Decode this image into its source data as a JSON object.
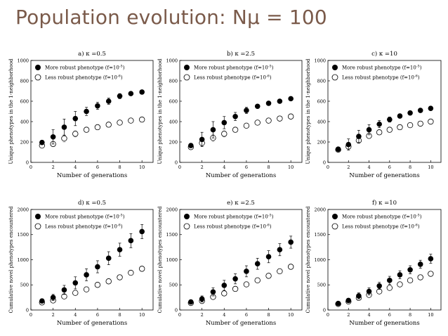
{
  "slide": {
    "title": "Population evolution: Nμ = 100"
  },
  "legend": {
    "more_robust": "More robust phenotype (f=10",
    "more_robust_exp": "-5",
    "less_robust": "Less robust phenotype (f=10",
    "less_robust_exp": "-6",
    "close": ")"
  },
  "chart_data": [
    {
      "id": "a",
      "type": "scatter",
      "title": "a) κ =0.5",
      "xlabel": "Number of generations",
      "ylabel": "Unique phenotypes in the 1-neighborhood",
      "xlim": [
        0,
        11
      ],
      "ylim": [
        0,
        1000
      ],
      "xticks": [
        0,
        2,
        4,
        6,
        8,
        10
      ],
      "yticks": [
        0,
        200,
        400,
        600,
        800,
        1000
      ],
      "x": [
        1,
        2,
        3,
        4,
        5,
        6,
        7,
        8,
        9,
        10
      ],
      "series": [
        {
          "name": "More robust phenotype (f=10^-5)",
          "marker": "filled",
          "values": [
            195,
            250,
            345,
            430,
            500,
            555,
            600,
            650,
            675,
            690
          ],
          "err": [
            20,
            70,
            80,
            70,
            40,
            35,
            30,
            25,
            15,
            10
          ]
        },
        {
          "name": "Less robust phenotype (f=10^-6)",
          "marker": "open",
          "values": [
            165,
            180,
            235,
            280,
            320,
            345,
            370,
            390,
            410,
            420
          ],
          "err": [
            15,
            25,
            35,
            30,
            20,
            15,
            12,
            10,
            10,
            10
          ]
        }
      ]
    },
    {
      "id": "b",
      "type": "scatter",
      "title": "b) κ =2.5",
      "xlabel": "Number of generations",
      "ylabel": "Unique phenotypes in the 1-neighborhood",
      "xlim": [
        0,
        11
      ],
      "ylim": [
        0,
        1000
      ],
      "xticks": [
        0,
        2,
        4,
        6,
        8,
        10
      ],
      "yticks": [
        0,
        200,
        400,
        600,
        800,
        1000
      ],
      "x": [
        1,
        2,
        3,
        4,
        5,
        6,
        7,
        8,
        9,
        10
      ],
      "series": [
        {
          "name": "More robust phenotype (f=10^-5)",
          "marker": "filled",
          "values": [
            165,
            225,
            320,
            390,
            450,
            510,
            550,
            580,
            600,
            625
          ],
          "err": [
            20,
            70,
            80,
            60,
            40,
            30,
            20,
            15,
            15,
            10
          ]
        },
        {
          "name": "Less robust phenotype (f=10^-6)",
          "marker": "open",
          "values": [
            150,
            190,
            240,
            280,
            320,
            360,
            390,
            410,
            430,
            450
          ],
          "err": [
            15,
            30,
            35,
            30,
            20,
            15,
            12,
            10,
            10,
            10
          ]
        }
      ]
    },
    {
      "id": "c",
      "type": "scatter",
      "title": "c) κ =10",
      "xlabel": "Number of generations",
      "ylabel": "Unique phenotypes in the 1-neighborhood",
      "xlim": [
        0,
        11
      ],
      "ylim": [
        0,
        1000
      ],
      "xticks": [
        0,
        2,
        4,
        6,
        8,
        10
      ],
      "yticks": [
        0,
        200,
        400,
        600,
        800,
        1000
      ],
      "x": [
        1,
        2,
        3,
        4,
        5,
        6,
        7,
        8,
        9,
        10
      ],
      "series": [
        {
          "name": "More robust phenotype (f=10^-5)",
          "marker": "filled",
          "values": [
            130,
            175,
            255,
            320,
            375,
            420,
            455,
            485,
            510,
            530
          ],
          "err": [
            15,
            55,
            60,
            50,
            35,
            25,
            20,
            15,
            15,
            10
          ]
        },
        {
          "name": "Less robust phenotype (f=10^-6)",
          "marker": "open",
          "values": [
            125,
            155,
            215,
            260,
            295,
            320,
            345,
            365,
            380,
            400
          ],
          "err": [
            10,
            25,
            30,
            25,
            20,
            15,
            12,
            10,
            10,
            10
          ]
        }
      ]
    },
    {
      "id": "d",
      "type": "scatter",
      "title": "d) κ =0.5",
      "xlabel": "Number of generations",
      "ylabel": "Cumulative novel phenotypes encountered",
      "xlim": [
        0,
        11
      ],
      "ylim": [
        0,
        2000
      ],
      "xticks": [
        0,
        2,
        4,
        6,
        8,
        10
      ],
      "yticks": [
        0,
        500,
        1000,
        1500,
        2000
      ],
      "x": [
        1,
        2,
        3,
        4,
        5,
        6,
        7,
        8,
        9,
        10
      ],
      "series": [
        {
          "name": "More robust phenotype (f=10^-5)",
          "marker": "filled",
          "values": [
            180,
            250,
            400,
            540,
            700,
            860,
            1030,
            1200,
            1380,
            1560
          ],
          "err": [
            40,
            60,
            90,
            120,
            120,
            120,
            130,
            130,
            140,
            140
          ]
        },
        {
          "name": "Less robust phenotype (f=10^-6)",
          "marker": "open",
          "values": [
            150,
            190,
            270,
            340,
            410,
            500,
            570,
            650,
            740,
            820
          ],
          "err": [
            20,
            30,
            40,
            40,
            40,
            40,
            40,
            40,
            40,
            50
          ]
        }
      ]
    },
    {
      "id": "e",
      "type": "scatter",
      "title": "e) κ =2.5",
      "xlabel": "Number of generations",
      "ylabel": "Cumulative novel phenotypes encountered",
      "xlim": [
        0,
        11
      ],
      "ylim": [
        0,
        2000
      ],
      "xticks": [
        0,
        2,
        4,
        6,
        8,
        10
      ],
      "yticks": [
        0,
        500,
        1000,
        1500,
        2000
      ],
      "x": [
        1,
        2,
        3,
        4,
        5,
        6,
        7,
        8,
        9,
        10
      ],
      "series": [
        {
          "name": "More robust phenotype (f=10^-5)",
          "marker": "filled",
          "values": [
            160,
            220,
            360,
            490,
            620,
            770,
            920,
            1060,
            1200,
            1350
          ],
          "err": [
            30,
            60,
            80,
            100,
            100,
            110,
            110,
            120,
            120,
            120
          ]
        },
        {
          "name": "Less robust phenotype (f=10^-6)",
          "marker": "open",
          "values": [
            140,
            180,
            260,
            330,
            420,
            510,
            590,
            680,
            770,
            860
          ],
          "err": [
            20,
            30,
            40,
            40,
            40,
            40,
            40,
            40,
            40,
            50
          ]
        }
      ]
    },
    {
      "id": "f",
      "type": "scatter",
      "title": "f) κ =10",
      "xlabel": "Number of generations",
      "ylabel": "Cumulative novel phenotypes encountered",
      "xlim": [
        0,
        11
      ],
      "ylim": [
        0,
        2000
      ],
      "xticks": [
        0,
        2,
        4,
        6,
        8,
        10
      ],
      "yticks": [
        0,
        500,
        1000,
        1500,
        2000
      ],
      "x": [
        1,
        2,
        3,
        4,
        5,
        6,
        7,
        8,
        9,
        10
      ],
      "series": [
        {
          "name": "More robust phenotype (f=10^-5)",
          "marker": "filled",
          "values": [
            130,
            190,
            280,
            370,
            480,
            590,
            700,
            800,
            910,
            1020
          ],
          "err": [
            20,
            40,
            60,
            70,
            70,
            80,
            80,
            80,
            80,
            90
          ]
        },
        {
          "name": "Less robust phenotype (f=10^-6)",
          "marker": "open",
          "values": [
            120,
            170,
            240,
            300,
            370,
            440,
            510,
            590,
            650,
            720
          ],
          "err": [
            15,
            30,
            40,
            40,
            40,
            40,
            40,
            40,
            40,
            40
          ]
        }
      ]
    }
  ]
}
